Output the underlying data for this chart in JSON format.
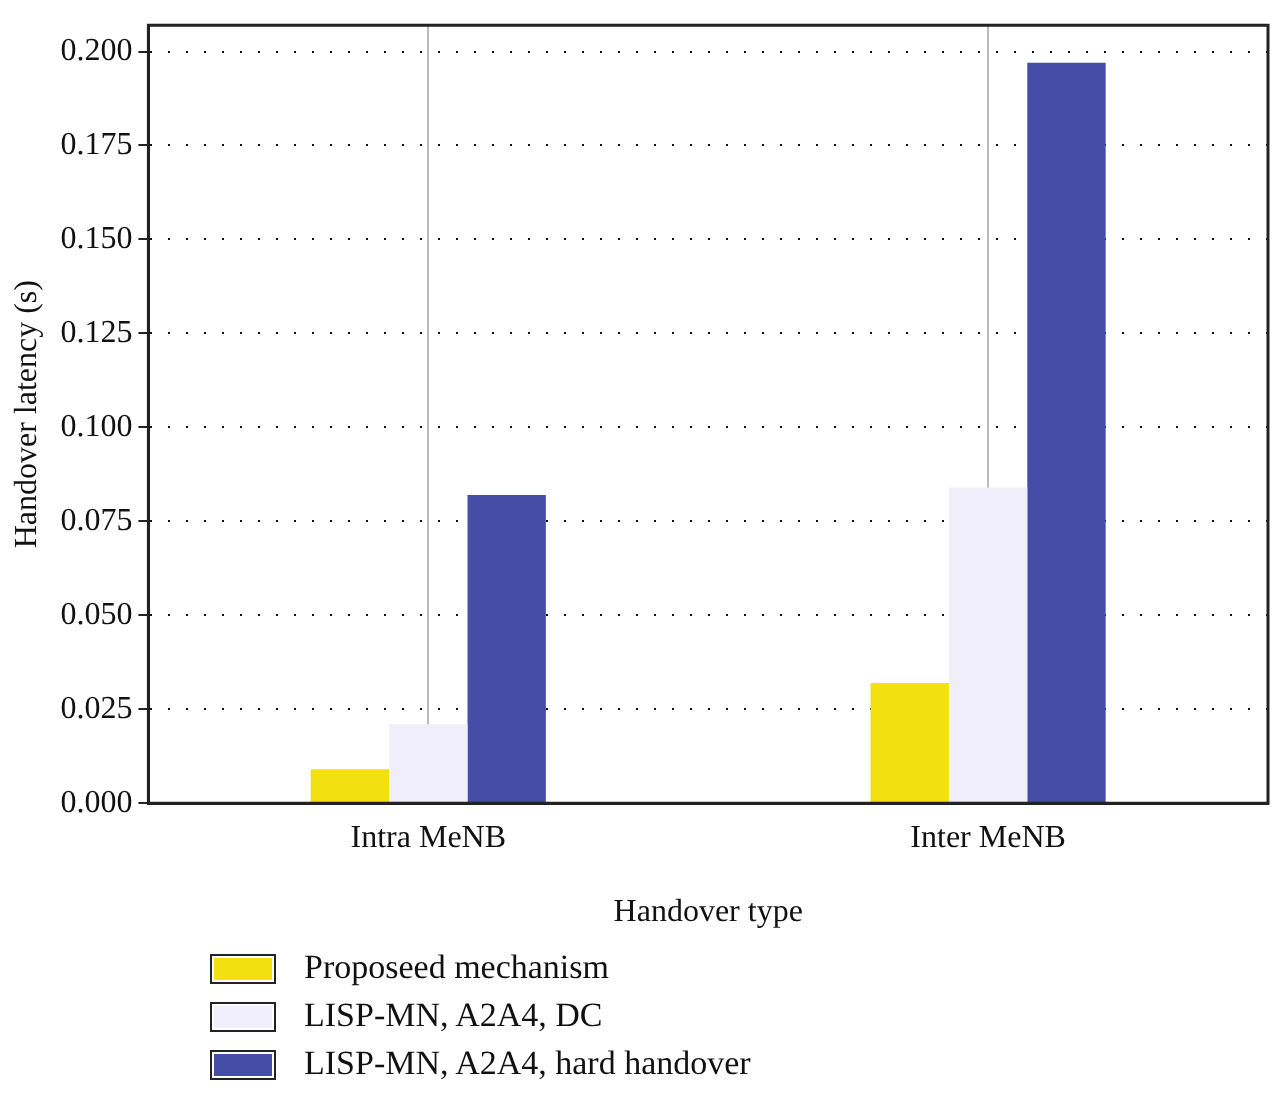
{
  "chart_data": {
    "type": "bar",
    "xlabel": "Handover type",
    "ylabel": "Handover latency (s)",
    "categories": [
      "Intra MeNB",
      "Inter MeNB"
    ],
    "series": [
      {
        "name": "Proposeed mechanism",
        "color": "#f3e011",
        "values": [
          0.009,
          0.032
        ]
      },
      {
        "name": "LISP-MN, A2A4, DC",
        "color": "#efeefa",
        "values": [
          0.021,
          0.084
        ]
      },
      {
        "name": "LISP-MN, A2A4, hard handover",
        "color": "#444ea6",
        "values": [
          0.082,
          0.197
        ]
      }
    ],
    "ylim": [
      0,
      0.207
    ],
    "yticks": [
      {
        "value": 0,
        "label": "0.000"
      },
      {
        "value": 0.025,
        "label": "0.025"
      },
      {
        "value": 0.05,
        "label": "0.050"
      },
      {
        "value": 0.075,
        "label": "0.075"
      },
      {
        "value": 0.1,
        "label": "0.100"
      },
      {
        "value": 0.125,
        "label": "0.125"
      },
      {
        "value": 0.15,
        "label": "0.150"
      },
      {
        "value": 0.175,
        "label": "0.175"
      },
      {
        "value": 0.2,
        "label": "0.200"
      }
    ],
    "grid": true,
    "legend": "bottom"
  }
}
